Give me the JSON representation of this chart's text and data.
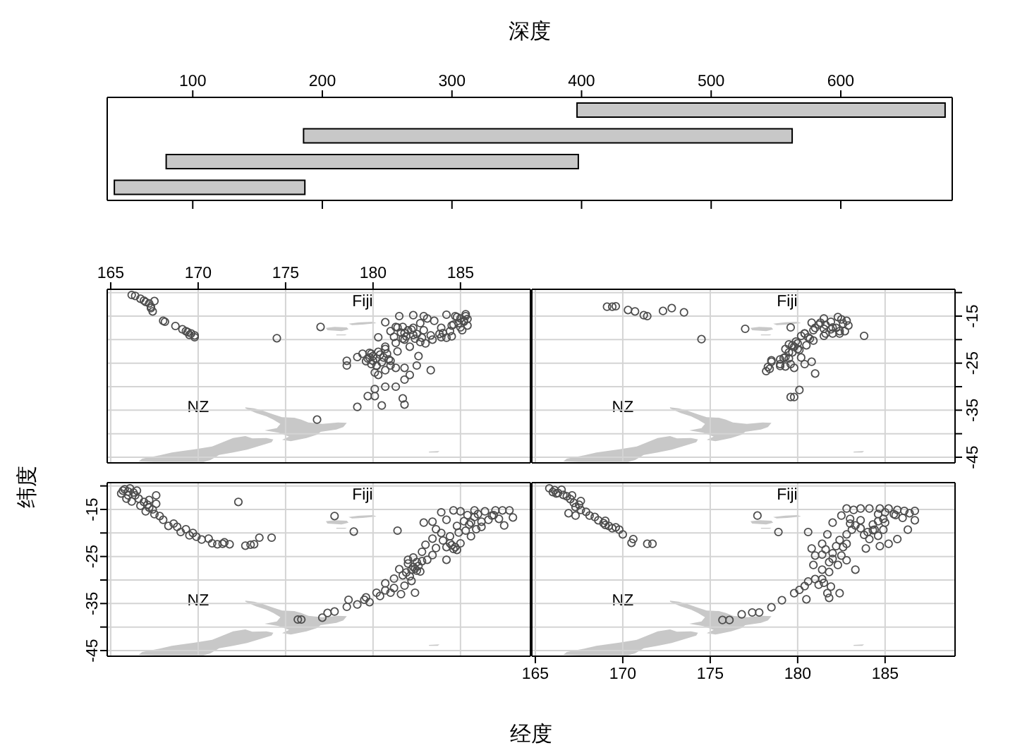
{
  "chart_data": [
    {
      "type": "bar",
      "orientation": "horizontal",
      "xlabel": "深度",
      "categories": [
        null,
        null,
        null,
        null
      ],
      "base": [
        396.5,
        185.5,
        79.5,
        39.5
      ],
      "values": [
        284,
        377,
        318,
        147
      ],
      "color": "#c8c8c8",
      "xlim": [
        34,
        686
      ],
      "xticks": [
        100,
        200,
        300,
        400,
        500,
        600
      ]
    },
    {
      "type": "scatter",
      "marker": "circle",
      "color": "#4d4d4d",
      "grid": true,
      "tick_labels": "x",
      "annotations": [
        "Fiji",
        "NZ"
      ],
      "xlim": [
        164.8,
        189.0
      ],
      "ylim": [
        -46.2,
        -9.3
      ],
      "xticks": [
        165,
        170,
        175,
        180,
        185
      ],
      "yticks": [
        {
          "value": -10,
          "label": null
        },
        -15,
        {
          "value": -20,
          "label": null
        },
        -25,
        {
          "value": -30,
          "label": null
        },
        -35,
        {
          "value": -40,
          "label": null
        },
        -45
      ],
      "x": [
        166.2,
        166.4,
        166.7,
        166.9,
        167.0,
        167.2,
        167.3,
        167.3,
        167.4,
        167.5,
        168.0,
        168.1,
        168.7,
        169.1,
        169.3,
        169.4,
        169.6,
        169.8,
        169.8,
        169.5,
        174.5,
        177.0,
        176.8,
        180.7,
        181.3,
        181.5,
        181.7,
        182.3,
        182.7,
        182.9,
        183.1,
        183.5,
        184.2,
        184.7,
        185.0,
        185.3,
        185.4,
        185.1,
        184.5,
        183.9,
        183.4,
        182.7,
        182.3,
        181.8,
        181.3,
        180.7,
        180.3,
        179.9,
        179.7,
        179.4,
        179.1,
        178.5,
        178.5,
        180.2,
        180.3,
        180.7,
        181.3,
        181.8,
        182.1,
        181.8,
        181.3,
        180.7,
        180.1,
        179.7,
        180.1,
        180.5,
        179.1,
        181.7,
        181.8,
        182.5,
        182.6,
        183.3,
        180.7,
        182.3,
        182.9,
        183.9,
        184.5,
        181.0,
        181.4,
        182.1,
        180.0,
        180.2,
        180.0,
        179.8,
        180.4,
        181.6,
        182.0,
        182.4,
        181.9,
        184.0,
        184.4,
        185.2,
        185.4,
        184.9,
        180.1,
        179.8,
        180.3,
        180.8,
        179.6,
        180.5,
        180.9,
        180.2,
        179.9,
        180.6,
        181.0,
        181.0,
        181.4,
        181.8,
        182.2,
        182.5,
        181.2,
        181.7,
        184.8,
        185.2,
        184.6,
        185.0,
        183.8,
        184.2,
        183.3,
        185.3,
        182.8,
        183.0
      ],
      "values": [
        -10.5,
        -10.7,
        -11.3,
        -11.7,
        -12.0,
        -12.3,
        -13.0,
        -13.3,
        -14.0,
        -11.8,
        -16.0,
        -16.2,
        -17.1,
        -17.8,
        -18.2,
        -18.4,
        -18.7,
        -19.1,
        -19.5,
        -19.0,
        -19.7,
        -17.3,
        -37.0,
        -16.3,
        -17.3,
        -15.0,
        -17.3,
        -14.8,
        -16.5,
        -15.0,
        -15.5,
        -16.0,
        -14.7,
        -15.0,
        -15.5,
        -15.0,
        -17.0,
        -18.0,
        -19.3,
        -19.5,
        -20.0,
        -20.5,
        -19.0,
        -20.0,
        -20.7,
        -22.0,
        -19.5,
        -23.0,
        -24.0,
        -23.0,
        -23.7,
        -24.5,
        -25.5,
        -25.5,
        -27.5,
        -26.5,
        -26.0,
        -26.0,
        -27.5,
        -28.5,
        -30.0,
        -30.0,
        -30.5,
        -32.0,
        -32.0,
        -34.0,
        -34.3,
        -32.5,
        -33.8,
        -25.5,
        -23.5,
        -26.5,
        -21.5,
        -17.5,
        -18.0,
        -17.5,
        -17.0,
        -24.5,
        -22.5,
        -21.5,
        -23.5,
        -24.0,
        -24.5,
        -23.8,
        -23.2,
        -18.5,
        -18.0,
        -19.8,
        -19.3,
        -18.6,
        -18.2,
        -16.2,
        -15.6,
        -16.5,
        -27.0,
        -22.8,
        -22.6,
        -23.0,
        -24.6,
        -24.8,
        -24.2,
        -25.6,
        -25.2,
        -23.8,
        -25.5,
        -18.2,
        -17.4,
        -18.6,
        -17.9,
        -18.8,
        -19.4,
        -19.8,
        -15.2,
        -16.0,
        -16.8,
        -17.4,
        -18.8,
        -19.6,
        -19.1,
        -14.6,
        -19.6,
        -20.8
      ]
    },
    {
      "type": "scatter",
      "marker": "circle",
      "color": "#4d4d4d",
      "grid": true,
      "tick_labels": "y",
      "annotations": [
        "Fiji",
        "NZ"
      ],
      "xlim": [
        164.8,
        189.0
      ],
      "ylim": [
        -46.2,
        -9.3
      ],
      "xticks": [
        165,
        170,
        175,
        180,
        185
      ],
      "yticks": [
        {
          "value": -10,
          "label": null
        },
        -15,
        {
          "value": -20,
          "label": null
        },
        -25,
        {
          "value": -30,
          "label": null
        },
        -35,
        {
          "value": -40,
          "label": null
        },
        -45
      ],
      "x": [
        169.1,
        169.4,
        169.6,
        170.3,
        170.7,
        171.2,
        171.4,
        172.3,
        172.8,
        173.5,
        174.5,
        177.0,
        179.6,
        180.8,
        181.5,
        182.3,
        182.5,
        182.8,
        182.9,
        183.8,
        182.7,
        182.0,
        181.5,
        180.9,
        180.5,
        180.1,
        179.7,
        179.3,
        179.0,
        179.0,
        179.3,
        179.8,
        180.4,
        180.8,
        181.0,
        178.4,
        178.2,
        178.5,
        180.1,
        179.8,
        179.6,
        180.9,
        181.5,
        182.0,
        182.4,
        180.4,
        179.6,
        179.3,
        179.7,
        181.2,
        181.9,
        182.6,
        180.6,
        180.0,
        179.5,
        180.2,
        178.3,
        179.5,
        179.9,
        180.4,
        181.0,
        181.6,
        182.2,
        182.4,
        181.6,
        180.7,
        179.8,
        179.2,
        179.0,
        178.5,
        181.3,
        181.9,
        180.2,
        179.5,
        180.0
      ],
      "values": [
        -13.0,
        -13.0,
        -12.9,
        -13.7,
        -14.0,
        -14.8,
        -15.0,
        -13.9,
        -13.3,
        -14.2,
        -19.9,
        -17.7,
        -17.4,
        -16.4,
        -15.5,
        -15.2,
        -15.7,
        -16.0,
        -17.0,
        -19.2,
        -18.2,
        -18.7,
        -19.2,
        -20.2,
        -21.2,
        -22.2,
        -22.7,
        -23.7,
        -24.2,
        -25.2,
        -25.7,
        -26.0,
        -25.2,
        -24.7,
        -27.2,
        -26.2,
        -26.7,
        -24.7,
        -30.7,
        -32.2,
        -32.2,
        -18.0,
        -17.7,
        -17.4,
        -18.2,
        -18.7,
        -25.2,
        -22.0,
        -21.2,
        -16.8,
        -16.2,
        -16.6,
        -19.5,
        -20.8,
        -24.0,
        -23.8,
        -25.8,
        -22.7,
        -20.4,
        -18.7,
        -17.5,
        -16.9,
        -17.5,
        -18.7,
        -18.7,
        -19.8,
        -21.5,
        -23.9,
        -25.6,
        -24.4,
        -16.4,
        -17.8,
        -19.2,
        -21.0,
        -22.0
      ]
    },
    {
      "type": "scatter",
      "marker": "circle",
      "color": "#4d4d4d",
      "grid": true,
      "tick_labels": "y",
      "ylabel": "纬度",
      "annotations": [
        "Fiji",
        "NZ"
      ],
      "xlim": [
        164.8,
        189.0
      ],
      "ylim": [
        -46.2,
        -9.3
      ],
      "xticks": [
        165,
        170,
        175,
        180,
        185
      ],
      "yticks": [
        {
          "value": -10,
          "label": null
        },
        -15,
        {
          "value": -20,
          "label": null
        },
        -25,
        {
          "value": -30,
          "label": null
        },
        -35,
        {
          "value": -40,
          "label": null
        },
        -45
      ],
      "x": [
        165.8,
        166.0,
        166.3,
        165.9,
        166.6,
        166.7,
        167.1,
        167.4,
        167.6,
        167.0,
        167.8,
        168.0,
        168.6,
        168.8,
        169.0,
        169.3,
        169.7,
        169.9,
        170.2,
        170.6,
        170.8,
        171.1,
        171.5,
        171.8,
        172.3,
        172.7,
        173.0,
        173.2,
        173.5,
        174.2,
        177.8,
        178.9,
        181.4,
        165.7,
        166.1,
        166.4,
        166.2,
        166.9,
        167.2,
        168.3,
        169.5,
        171.4,
        175.7,
        175.9,
        177.1,
        177.4,
        177.8,
        178.5,
        179.5,
        179.8,
        180.2,
        180.4,
        180.7,
        181.0,
        181.2,
        181.6,
        181.8,
        182.2,
        182.4,
        181.5,
        182.0,
        182.3,
        182.7,
        183.1,
        183.4,
        183.6,
        184.2,
        183.4,
        183.6,
        183.9,
        184.4,
        184.7,
        184.2,
        184.6,
        185.0,
        185.4,
        185.5,
        185.9,
        186.2,
        186.6,
        187.0,
        187.4,
        187.8,
        188.0,
        187.5,
        185.8,
        185.6,
        185.0,
        178.6,
        179.1,
        179.6,
        180.7,
        181.2,
        182.3,
        182.4,
        182.5,
        184.6,
        184.5,
        186.0,
        186.4,
        186.8,
        185.2,
        184.8,
        183.0,
        182.8,
        181.7,
        183.9,
        182.9,
        183.4,
        182.0,
        182.5,
        182.2,
        182.6,
        181.9,
        182.8,
        182.1,
        184.0,
        184.4,
        184.8,
        184.2,
        185.8,
        186.2,
        186.9,
        187.2,
        185.6,
        184.9,
        185.3,
        165.6,
        166.0,
        166.5,
        167.2,
        167.6,
        167.5
      ],
      "values": [
        -10.7,
        -11.2,
        -11.4,
        -12.7,
        -12.7,
        -14.2,
        -14.0,
        -15.0,
        -12.0,
        -15.4,
        -16.4,
        -17.2,
        -18.0,
        -18.7,
        -19.8,
        -19.2,
        -20.0,
        -20.8,
        -21.4,
        -21.2,
        -22.2,
        -22.4,
        -22.0,
        -22.4,
        -13.4,
        -22.7,
        -22.5,
        -22.4,
        -21.0,
        -21.0,
        -16.4,
        -19.7,
        -19.5,
        -11.0,
        -10.5,
        -12.0,
        -13.3,
        -13.4,
        -13.0,
        -18.5,
        -20.5,
        -22.3,
        -38.4,
        -38.4,
        -38.0,
        -37.0,
        -36.7,
        -35.7,
        -34.2,
        -34.7,
        -32.7,
        -33.4,
        -32.2,
        -32.7,
        -29.7,
        -33.0,
        -31.2,
        -30.2,
        -32.7,
        -27.7,
        -25.7,
        -27.2,
        -28.2,
        -25.7,
        -24.7,
        -23.2,
        -25.7,
        -21.2,
        -19.2,
        -20.0,
        -20.7,
        -23.0,
        -17.2,
        -15.2,
        -15.4,
        -16.2,
        -18.2,
        -19.2,
        -18.7,
        -17.2,
        -15.2,
        -15.2,
        -15.2,
        -16.7,
        -18.4,
        -15.2,
        -20.7,
        -22.2,
        -34.2,
        -35.2,
        -33.7,
        -30.7,
        -31.7,
        -25.2,
        -27.6,
        -28.0,
        -23.4,
        -22.6,
        -16.0,
        -15.4,
        -16.3,
        -17.5,
        -18.5,
        -22.5,
        -24.0,
        -29.0,
        -15.6,
        -17.8,
        -17.6,
        -26.5,
        -26.2,
        -27.8,
        -27.0,
        -28.4,
        -26.0,
        -29.2,
        -21.6,
        -22.2,
        -23.6,
        -23.0,
        -16.6,
        -17.6,
        -16.2,
        -17.0,
        -17.8,
        -19.9,
        -19.5,
        -11.6,
        -12.0,
        -11.0,
        -14.6,
        -13.8,
        -16.0
      ]
    },
    {
      "type": "scatter",
      "marker": "circle",
      "color": "#4d4d4d",
      "grid": true,
      "tick_labels": "x",
      "xlabel": "经度",
      "annotations": [
        "Fiji",
        "NZ"
      ],
      "xlim": [
        164.8,
        189.0
      ],
      "ylim": [
        -46.2,
        -9.3
      ],
      "xticks": [
        165,
        170,
        175,
        180,
        185
      ],
      "yticks": [
        {
          "value": -10,
          "label": null
        },
        -15,
        {
          "value": -20,
          "label": null
        },
        -25,
        {
          "value": -30,
          "label": null
        },
        -35,
        {
          "value": -40,
          "label": null
        },
        -45
      ],
      "x": [
        165.8,
        166.1,
        166.3,
        166.6,
        167.0,
        167.2,
        167.3,
        167.6,
        167.9,
        168.1,
        166.9,
        167.3,
        168.6,
        168.9,
        169.2,
        169.6,
        169.8,
        170.0,
        170.6,
        170.5,
        171.4,
        171.7,
        177.7,
        178.9,
        166.0,
        166.5,
        167.1,
        167.5,
        169.4,
        169.0,
        175.7,
        176.1,
        176.8,
        177.4,
        177.8,
        178.5,
        179.1,
        179.8,
        180.1,
        180.5,
        180.4,
        180.6,
        181.0,
        181.4,
        181.7,
        181.8,
        182.4,
        180.9,
        181.0,
        180.8,
        181.4,
        180.6,
        181.7,
        182.0,
        182.5,
        182.8,
        183.2,
        183.6,
        184.1,
        184.7,
        185.2,
        185.7,
        186.1,
        186.7,
        186.7,
        186.3,
        185.7,
        185.2,
        184.7,
        184.1,
        184.4,
        184.9,
        183.1,
        182.8,
        182.5,
        182.3,
        181.8,
        183.3,
        182.8,
        183.6,
        183.9,
        182.8,
        182.0,
        181.4,
        184.6,
        184.9,
        185.0,
        184.3,
        185.5,
        183.0,
        182.4,
        182.6,
        181.2,
        183.6,
        184.0,
        183.8,
        184.3,
        183.3,
        184.6,
        183.0,
        181.6,
        182.0,
        181.8,
        182.2,
        181.4,
        185.0,
        185.6,
        186.0,
        186.4,
        184.6,
        166.2,
        166.8,
        167.6,
        168.4,
        169.0,
        181.5,
        181.9
      ],
      "values": [
        -10.5,
        -10.9,
        -11.5,
        -11.9,
        -12.8,
        -13.6,
        -14.5,
        -15.1,
        -15.5,
        -16.3,
        -15.8,
        -16.3,
        -17.3,
        -17.9,
        -18.5,
        -18.8,
        -19.3,
        -20.3,
        -21.3,
        -22.1,
        -22.3,
        -22.3,
        -16.3,
        -19.8,
        -11.3,
        -10.8,
        -12.0,
        -14.0,
        -19.0,
        -18.3,
        -38.5,
        -38.5,
        -37.3,
        -36.9,
        -36.9,
        -35.8,
        -34.3,
        -32.8,
        -32.1,
        -34.1,
        -31.3,
        -30.3,
        -29.8,
        -29.8,
        -32.8,
        -33.8,
        -32.8,
        -26.8,
        -24.8,
        -23.3,
        -22.3,
        -19.8,
        -20.3,
        -17.8,
        -16.3,
        -14.8,
        -15.1,
        -14.8,
        -14.8,
        -14.8,
        -14.8,
        -15.1,
        -15.3,
        -15.3,
        -17.3,
        -19.3,
        -21.3,
        -22.3,
        -22.8,
        -21.3,
        -19.3,
        -19.3,
        -19.3,
        -22.3,
        -24.8,
        -26.8,
        -28.3,
        -27.8,
        -25.8,
        -17.3,
        -23.3,
        -20.3,
        -24.3,
        -27.8,
        -17.5,
        -17.0,
        -17.8,
        -18.2,
        -16.0,
        -17.0,
        -21.5,
        -23.0,
        -31.0,
        -19.0,
        -19.8,
        -20.4,
        -19.4,
        -18.4,
        -20.6,
        -18.0,
        -23.5,
        -25.5,
        -26.2,
        -22.8,
        -24.6,
        -15.6,
        -16.2,
        -16.8,
        -15.8,
        -16.0,
        -11.6,
        -12.2,
        -13.2,
        -16.6,
        -17.4,
        -30.6,
        -31.4
      ]
    }
  ]
}
